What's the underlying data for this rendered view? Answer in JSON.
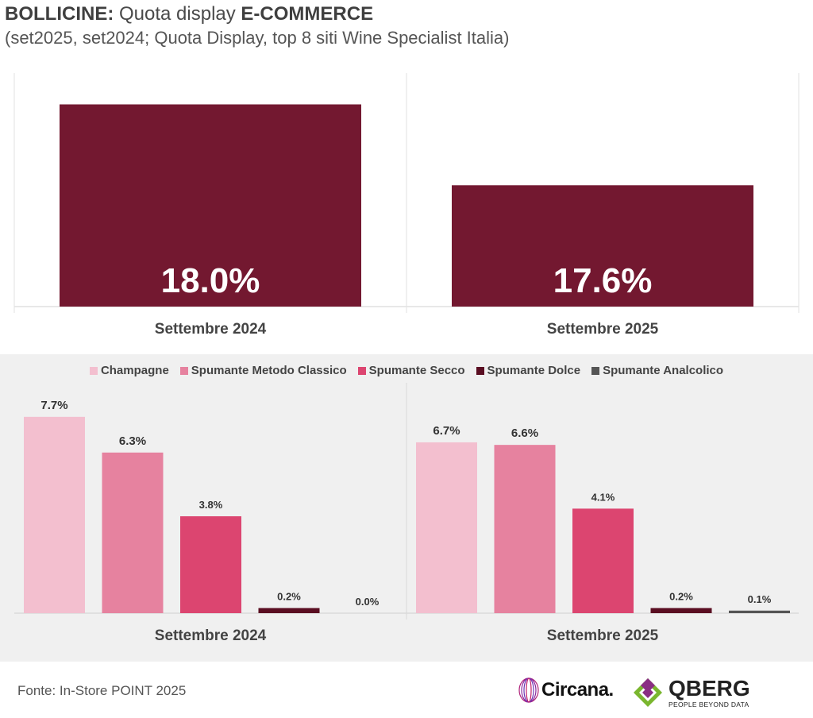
{
  "header": {
    "title_bold_1": "BOLLICINE:",
    "title_regular": " Quota display ",
    "title_bold_2": "E-COMMERCE",
    "subtitle": "(set2025, set2024; Quota Display, top 8 siti Wine Specialist Italia)"
  },
  "colors": {
    "total_bar": "#731830",
    "panel_bg": "#f0f0f0",
    "champagne": "#f3bfcf",
    "classico": "#e6829f",
    "secco": "#dc4570",
    "dolce": "#5a0e22",
    "analcolico": "#555555"
  },
  "chart_data": [
    {
      "type": "bar",
      "categories": [
        "Settembre 2024",
        "Settembre 2025"
      ],
      "values": [
        18.0,
        17.6
      ],
      "value_labels": [
        "18.0%",
        "17.6%"
      ],
      "ylim": [
        17.0,
        18.1
      ],
      "grid": false
    },
    {
      "type": "bar",
      "categories": [
        "Settembre 2024",
        "Settembre 2025"
      ],
      "series": [
        {
          "name": "Champagne",
          "color_key": "champagne",
          "values": [
            7.7,
            6.7
          ],
          "labels": [
            "7.7%",
            "6.7%"
          ]
        },
        {
          "name": "Spumante Metodo Classico",
          "color_key": "classico",
          "values": [
            6.3,
            6.6
          ],
          "labels": [
            "6.3%",
            "6.6%"
          ]
        },
        {
          "name": "Spumante Secco",
          "color_key": "secco",
          "values": [
            3.8,
            4.1
          ],
          "labels": [
            "3.8%",
            "4.1%"
          ]
        },
        {
          "name": "Spumante Dolce",
          "color_key": "dolce",
          "values": [
            0.2,
            0.2
          ],
          "labels": [
            "0.2%",
            "0.2%"
          ]
        },
        {
          "name": "Spumante Analcolico",
          "color_key": "analcolico",
          "values": [
            0.0,
            0.1
          ],
          "labels": [
            "0.0%",
            "0.1%"
          ]
        }
      ],
      "ylim": [
        0,
        8.1
      ],
      "legend": "top",
      "grid": false
    }
  ],
  "footer": {
    "source": "Fonte: In-Store POINT 2025"
  },
  "logos": {
    "circana": "Circana.",
    "qberg": "QBERG",
    "qberg_tagline": "PEOPLE BEYOND DATA"
  }
}
